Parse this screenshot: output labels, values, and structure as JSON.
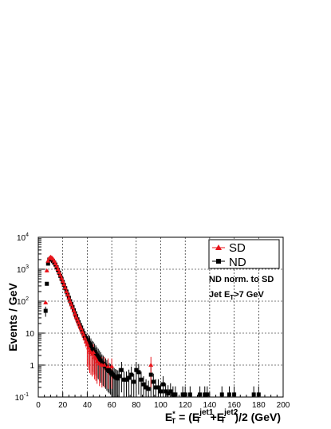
{
  "chart_data": {
    "type": "scatter",
    "title": "",
    "xlabel": {
      "main": "E",
      "sub": "T",
      "sup": "*",
      "middle": " = (E",
      "sub2": "T",
      "sup2": "jet1",
      "middle2": "+E",
      "sub3": "T",
      "sup3": "jet2",
      "tail": ")/2 (GeV)"
    },
    "ylabel": "Events / GeV",
    "xlim": [
      0,
      200
    ],
    "ylim": [
      0.1,
      10000
    ],
    "yscale": "log",
    "grid": true,
    "x_ticks": [
      "0",
      "20",
      "40",
      "60",
      "80",
      "100",
      "120",
      "140",
      "160",
      "180",
      "200"
    ],
    "y_ticks": [
      {
        "base": "10",
        "exp": "-1"
      },
      {
        "base": "1",
        "exp": ""
      },
      {
        "base": "10",
        "exp": ""
      },
      {
        "base": "10",
        "exp": "2"
      },
      {
        "base": "10",
        "exp": "3"
      },
      {
        "base": "10",
        "exp": "4"
      }
    ],
    "legend": {
      "placement": "top-right",
      "entries": [
        {
          "name": "SD",
          "marker": "triangle",
          "color": "#e8141b"
        },
        {
          "name": "ND",
          "marker": "square",
          "color": "#000000"
        }
      ]
    },
    "annotations": [
      {
        "text": "ND norm. to SD"
      },
      {
        "text_main": "Jet E",
        "text_sub": "T",
        "text_tail": ">7 GeV"
      }
    ],
    "series": [
      {
        "name": "SD",
        "color": "#e8141b",
        "marker": "triangle",
        "points": [
          [
            6,
            90
          ],
          [
            7,
            900
          ],
          [
            8,
            1800
          ],
          [
            9,
            2200
          ],
          [
            10,
            2400
          ],
          [
            11,
            2300
          ],
          [
            12,
            2100
          ],
          [
            13,
            1800
          ],
          [
            14,
            1500
          ],
          [
            15,
            1250
          ],
          [
            16,
            1000
          ],
          [
            17,
            800
          ],
          [
            18,
            650
          ],
          [
            19,
            520
          ],
          [
            20,
            420
          ],
          [
            21,
            330
          ],
          [
            22,
            260
          ],
          [
            23,
            200
          ],
          [
            24,
            160
          ],
          [
            25,
            125
          ],
          [
            26,
            98
          ],
          [
            27,
            78
          ],
          [
            28,
            62
          ],
          [
            29,
            50
          ],
          [
            30,
            40
          ],
          [
            31,
            32
          ],
          [
            32,
            26
          ],
          [
            33,
            21
          ],
          [
            34,
            17
          ],
          [
            35,
            14
          ],
          [
            36,
            11
          ],
          [
            37,
            9
          ],
          [
            38,
            7
          ],
          [
            39,
            5.5
          ],
          [
            40,
            4.5
          ],
          [
            41,
            3.5
          ],
          [
            42,
            2.8
          ],
          [
            43,
            2.5
          ],
          [
            44,
            2.2
          ],
          [
            45,
            2.5
          ],
          [
            46,
            1.8
          ],
          [
            47,
            1.6
          ],
          [
            48,
            1.3
          ],
          [
            50,
            1.1
          ],
          [
            52,
            1.0
          ],
          [
            54,
            1.0
          ],
          [
            57,
            0.9
          ],
          [
            60,
            0.9
          ],
          [
            92,
            1.0
          ]
        ]
      },
      {
        "name": "ND",
        "color": "#000000",
        "marker": "square",
        "points": [
          [
            6,
            50
          ],
          [
            7,
            350
          ],
          [
            8,
            1500
          ],
          [
            9,
            2000
          ],
          [
            10,
            2100
          ],
          [
            11,
            2000
          ],
          [
            12,
            1800
          ],
          [
            13,
            1600
          ],
          [
            14,
            1400
          ],
          [
            15,
            1150
          ],
          [
            16,
            950
          ],
          [
            17,
            780
          ],
          [
            18,
            620
          ],
          [
            19,
            500
          ],
          [
            20,
            400
          ],
          [
            21,
            320
          ],
          [
            22,
            255
          ],
          [
            23,
            200
          ],
          [
            24,
            160
          ],
          [
            25,
            128
          ],
          [
            26,
            100
          ],
          [
            27,
            82
          ],
          [
            28,
            66
          ],
          [
            29,
            52
          ],
          [
            30,
            42
          ],
          [
            31,
            34
          ],
          [
            32,
            27
          ],
          [
            33,
            22
          ],
          [
            34,
            18
          ],
          [
            35,
            15
          ],
          [
            36,
            12
          ],
          [
            37,
            10
          ],
          [
            38,
            8
          ],
          [
            39,
            7
          ],
          [
            40,
            6
          ],
          [
            41,
            5
          ],
          [
            42,
            4.5
          ],
          [
            43,
            3.8
          ],
          [
            44,
            3.2
          ],
          [
            45,
            3
          ],
          [
            46,
            2.6
          ],
          [
            47,
            2.3
          ],
          [
            48,
            2
          ],
          [
            49,
            1.8
          ],
          [
            50,
            1.6
          ],
          [
            51,
            1.4
          ],
          [
            52,
            1.2
          ],
          [
            53,
            1.1
          ],
          [
            54,
            1
          ],
          [
            55,
            0.9
          ],
          [
            56,
            0.8
          ],
          [
            57,
            0.7
          ],
          [
            58,
            0.65
          ],
          [
            59,
            0.6
          ],
          [
            60,
            0.55
          ],
          [
            61,
            0.5
          ],
          [
            62,
            0.45
          ],
          [
            63,
            0.42
          ],
          [
            64,
            0.4
          ],
          [
            65,
            0.38
          ],
          [
            66,
            0.45
          ],
          [
            68,
            0.7
          ],
          [
            70,
            0.35
          ],
          [
            72,
            0.35
          ],
          [
            74,
            0.4
          ],
          [
            76,
            0.5
          ],
          [
            78,
            0.3
          ],
          [
            80,
            0.7
          ],
          [
            82,
            0.6
          ],
          [
            84,
            0.35
          ],
          [
            86,
            0.25
          ],
          [
            88,
            0.2
          ],
          [
            90,
            0.18
          ],
          [
            92,
            0.5
          ],
          [
            94,
            0.3
          ],
          [
            96,
            0.2
          ],
          [
            98,
            0.2
          ],
          [
            100,
            0.15
          ],
          [
            102,
            0.25
          ],
          [
            104,
            0.15
          ],
          [
            106,
            0.13
          ],
          [
            108,
            0.15
          ],
          [
            110,
            0.12
          ],
          [
            112,
            0.12
          ],
          [
            118,
            0.12
          ],
          [
            120,
            0.12
          ],
          [
            124,
            0.12
          ],
          [
            132,
            0.12
          ],
          [
            136,
            0.12
          ],
          [
            138,
            0.12
          ],
          [
            150,
            0.12
          ],
          [
            156,
            0.12
          ],
          [
            160,
            0.12
          ],
          [
            176,
            0.12
          ],
          [
            180,
            0.12
          ]
        ]
      }
    ]
  }
}
